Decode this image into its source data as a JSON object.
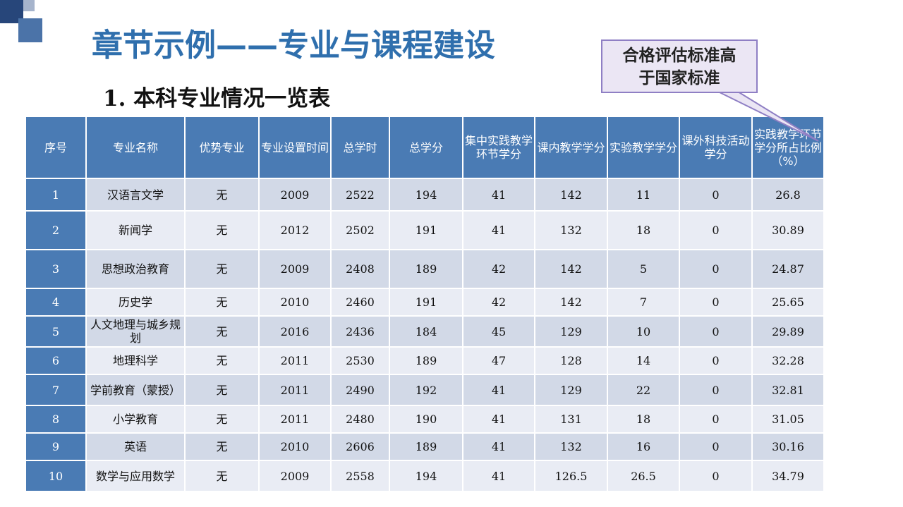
{
  "title": "章节示例——专业与课程建设",
  "subtitle": "1. 本科专业情况一览表",
  "callout": {
    "line1": "合格评估标准高",
    "line2": "于国家标准"
  },
  "colors": {
    "title": "#2f6fad",
    "header_bg": "#4a7bb4",
    "row_odd": "#d2d9e7",
    "row_even": "#e9ecf4",
    "callout_border": "#8f7fc4",
    "callout_bg": "#ebe6f4"
  },
  "table": {
    "headers": [
      "序号",
      "专业名称",
      "优势专业",
      "专业设置时间",
      "总学时",
      "总学分",
      "集中实践教学环节学分",
      "课内教学学分",
      "实验教学学分",
      "课外科技活动学分",
      "实践教学环节学分所占比例（%）"
    ],
    "rows": [
      [
        "1",
        "汉语言文学",
        "无",
        "2009",
        "2522",
        "194",
        "41",
        "142",
        "11",
        "0",
        "26.8"
      ],
      [
        "2",
        "新闻学",
        "无",
        "2012",
        "2502",
        "191",
        "41",
        "132",
        "18",
        "0",
        "30.89"
      ],
      [
        "3",
        "思想政治教育",
        "无",
        "2009",
        "2408",
        "189",
        "42",
        "142",
        "5",
        "0",
        "24.87"
      ],
      [
        "4",
        "历史学",
        "无",
        "2010",
        "2460",
        "191",
        "42",
        "142",
        "7",
        "0",
        "25.65"
      ],
      [
        "5",
        "人文地理与城乡规划",
        "无",
        "2016",
        "2436",
        "184",
        "45",
        "129",
        "10",
        "0",
        "29.89"
      ],
      [
        "6",
        "地理科学",
        "无",
        "2011",
        "2530",
        "189",
        "47",
        "128",
        "14",
        "0",
        "32.28"
      ],
      [
        "7",
        "学前教育（蒙授）",
        "无",
        "2011",
        "2490",
        "192",
        "41",
        "129",
        "22",
        "0",
        "32.81"
      ],
      [
        "8",
        "小学教育",
        "无",
        "2011",
        "2480",
        "190",
        "41",
        "131",
        "18",
        "0",
        "31.05"
      ],
      [
        "9",
        "英语",
        "无",
        "2010",
        "2606",
        "189",
        "41",
        "132",
        "16",
        "0",
        "30.16"
      ],
      [
        "10",
        "数学与应用数学",
        "无",
        "2009",
        "2558",
        "194",
        "41",
        "126.5",
        "26.5",
        "0",
        "34.79"
      ]
    ]
  }
}
